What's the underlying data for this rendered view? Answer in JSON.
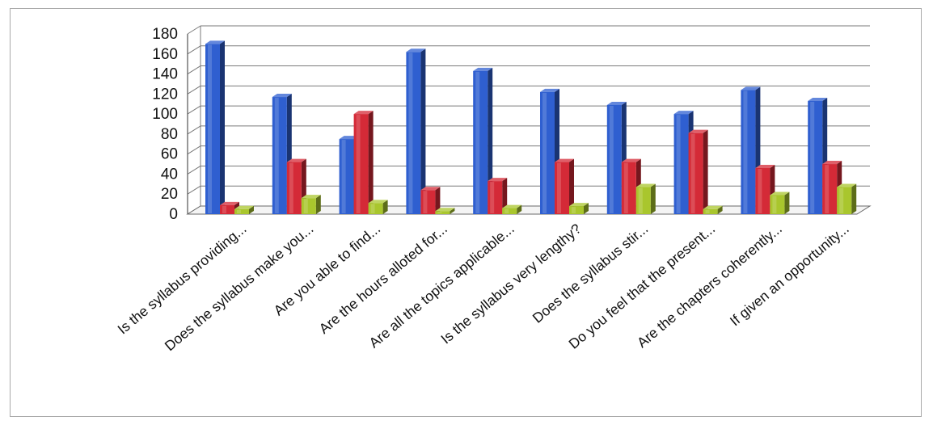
{
  "chart_data": {
    "type": "bar",
    "title": "",
    "xlabel": "",
    "ylabel": "",
    "ylim": [
      0,
      180
    ],
    "yticks": [
      0,
      20,
      40,
      60,
      80,
      100,
      120,
      140,
      160,
      180
    ],
    "grid": true,
    "legend": "none",
    "categories": [
      "Is the syllabus providing...",
      "Does the syllabus make you...",
      "Are you able to find...",
      "Are the hours alloted for...",
      "Are all the topics applicable...",
      "Is the syllabus very lengthy?",
      "Does the syllabus stir...",
      "Do you feel that the present...",
      "Are the chapters coherently...",
      "If given an opportunity..."
    ],
    "series": [
      {
        "color": "#2f5fd0",
        "values": [
          170,
          117,
          75,
          162,
          143,
          122,
          109,
          100,
          124,
          113
        ]
      },
      {
        "color": "#d42a37",
        "values": [
          9,
          52,
          100,
          24,
          33,
          52,
          52,
          81,
          46,
          50
        ]
      },
      {
        "color": "#a9c62d",
        "values": [
          5,
          16,
          11,
          3,
          6,
          8,
          27,
          5,
          19,
          27
        ]
      }
    ]
  }
}
